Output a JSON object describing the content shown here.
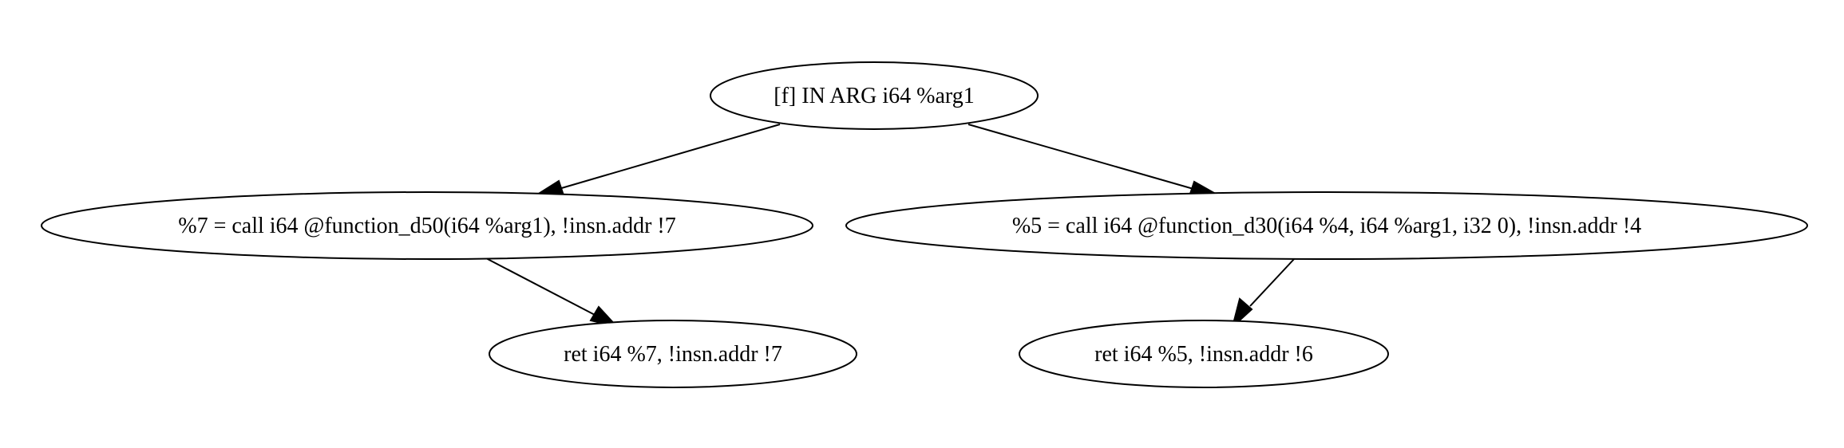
{
  "graph": {
    "nodes": [
      {
        "id": "n0",
        "label": "[f] IN ARG i64 %arg1"
      },
      {
        "id": "n1",
        "label": "%7 = call i64 @function_d50(i64 %arg1), !insn.addr !7"
      },
      {
        "id": "n2",
        "label": "%5 = call i64 @function_d30(i64 %4, i64 %arg1, i32 0), !insn.addr !4"
      },
      {
        "id": "n3",
        "label": "ret i64 %7, !insn.addr !7"
      },
      {
        "id": "n4",
        "label": "ret i64 %5, !insn.addr !6"
      }
    ],
    "edges": [
      {
        "from": "n0",
        "to": "n1"
      },
      {
        "from": "n0",
        "to": "n2"
      },
      {
        "from": "n1",
        "to": "n3"
      },
      {
        "from": "n2",
        "to": "n4"
      }
    ]
  }
}
